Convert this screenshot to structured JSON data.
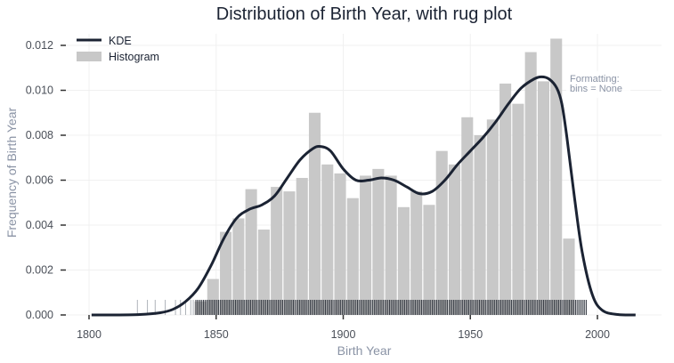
{
  "chart_data": {
    "type": "histogram",
    "title": "Distribution of Birth Year, with rug plot",
    "xlabel": "Birth Year",
    "ylabel": "Frequency of Birth Year",
    "xlim": [
      1790,
      2015
    ],
    "ylim": [
      0,
      0.0125
    ],
    "x_ticks": [
      1800,
      1850,
      1900,
      1950,
      2000
    ],
    "y_ticks": [
      0.0,
      0.002,
      0.004,
      0.006,
      0.008,
      0.01,
      0.012
    ],
    "y_tick_labels": [
      "0.000",
      "0.002",
      "0.004",
      "0.006",
      "0.008",
      "0.010",
      "0.012"
    ],
    "grid": true,
    "legend_position": "top-left",
    "annotation": [
      "Formatting:",
      "bins = None"
    ],
    "series": [
      {
        "name": "Histogram",
        "kind": "bars",
        "color": "#c8c8c8",
        "bins": [
          {
            "start": 1841.5,
            "end": 1846.5,
            "value": 0.0006
          },
          {
            "start": 1846.5,
            "end": 1851.5,
            "value": 0.0016
          },
          {
            "start": 1851.5,
            "end": 1856.5,
            "value": 0.0037
          },
          {
            "start": 1856.5,
            "end": 1861.5,
            "value": 0.0043
          },
          {
            "start": 1861.5,
            "end": 1866.5,
            "value": 0.0056
          },
          {
            "start": 1866.5,
            "end": 1871.5,
            "value": 0.0038
          },
          {
            "start": 1871.5,
            "end": 1876.5,
            "value": 0.0057
          },
          {
            "start": 1876.5,
            "end": 1881.5,
            "value": 0.0055
          },
          {
            "start": 1881.5,
            "end": 1886.5,
            "value": 0.0061
          },
          {
            "start": 1886.5,
            "end": 1891.5,
            "value": 0.009
          },
          {
            "start": 1891.5,
            "end": 1896.5,
            "value": 0.0067
          },
          {
            "start": 1896.5,
            "end": 1901.5,
            "value": 0.0063
          },
          {
            "start": 1901.5,
            "end": 1906.5,
            "value": 0.0052
          },
          {
            "start": 1906.5,
            "end": 1911.5,
            "value": 0.0062
          },
          {
            "start": 1911.5,
            "end": 1916.5,
            "value": 0.0065
          },
          {
            "start": 1916.5,
            "end": 1921.5,
            "value": 0.0062
          },
          {
            "start": 1921.5,
            "end": 1926.5,
            "value": 0.0048
          },
          {
            "start": 1926.5,
            "end": 1931.5,
            "value": 0.0055
          },
          {
            "start": 1931.5,
            "end": 1936.5,
            "value": 0.0049
          },
          {
            "start": 1936.5,
            "end": 1941.5,
            "value": 0.0073
          },
          {
            "start": 1941.5,
            "end": 1946.5,
            "value": 0.0067
          },
          {
            "start": 1946.5,
            "end": 1951.5,
            "value": 0.0088
          },
          {
            "start": 1951.5,
            "end": 1956.5,
            "value": 0.008
          },
          {
            "start": 1956.5,
            "end": 1961.5,
            "value": 0.0087
          },
          {
            "start": 1961.5,
            "end": 1966.5,
            "value": 0.0103
          },
          {
            "start": 1966.5,
            "end": 1971.5,
            "value": 0.0094
          },
          {
            "start": 1971.5,
            "end": 1976.5,
            "value": 0.0117
          },
          {
            "start": 1976.5,
            "end": 1981.5,
            "value": 0.0104
          },
          {
            "start": 1981.5,
            "end": 1986.5,
            "value": 0.0123
          },
          {
            "start": 1986.5,
            "end": 1991.5,
            "value": 0.0034
          }
        ]
      },
      {
        "name": "KDE",
        "kind": "line",
        "color": "#1b2333",
        "x": [
          1801,
          1810,
          1820,
          1828,
          1833,
          1838,
          1843,
          1848,
          1853,
          1858,
          1863,
          1868,
          1873,
          1878,
          1883,
          1888,
          1891,
          1895,
          1900,
          1905,
          1910,
          1915,
          1920,
          1925,
          1930,
          1935,
          1940,
          1945,
          1950,
          1955,
          1960,
          1965,
          1970,
          1975,
          1978,
          1981,
          1984,
          1986,
          1988,
          1991,
          1994,
          1998,
          2002,
          2008,
          2015
        ],
        "y": [
          0.0,
          0.0,
          2e-05,
          0.0001,
          0.00025,
          0.0006,
          0.0012,
          0.0022,
          0.0034,
          0.0043,
          0.0047,
          0.0049,
          0.0053,
          0.0061,
          0.0069,
          0.0074,
          0.0075,
          0.0073,
          0.0065,
          0.006,
          0.006,
          0.0061,
          0.006,
          0.0057,
          0.0054,
          0.0055,
          0.006,
          0.0067,
          0.0073,
          0.0079,
          0.0086,
          0.0094,
          0.0101,
          0.0105,
          0.0106,
          0.0105,
          0.0101,
          0.0094,
          0.0079,
          0.0052,
          0.0028,
          0.0009,
          0.0002,
          2e-05,
          0.0
        ]
      },
      {
        "name": "Rug",
        "kind": "rug",
        "color": "#2a2f38",
        "sparse_x": [
          1819,
          1823,
          1826,
          1830,
          1834,
          1836,
          1838,
          1840,
          1841
        ],
        "dense_range": [
          1842,
          1996
        ],
        "dense_step": 0.6
      }
    ]
  }
}
